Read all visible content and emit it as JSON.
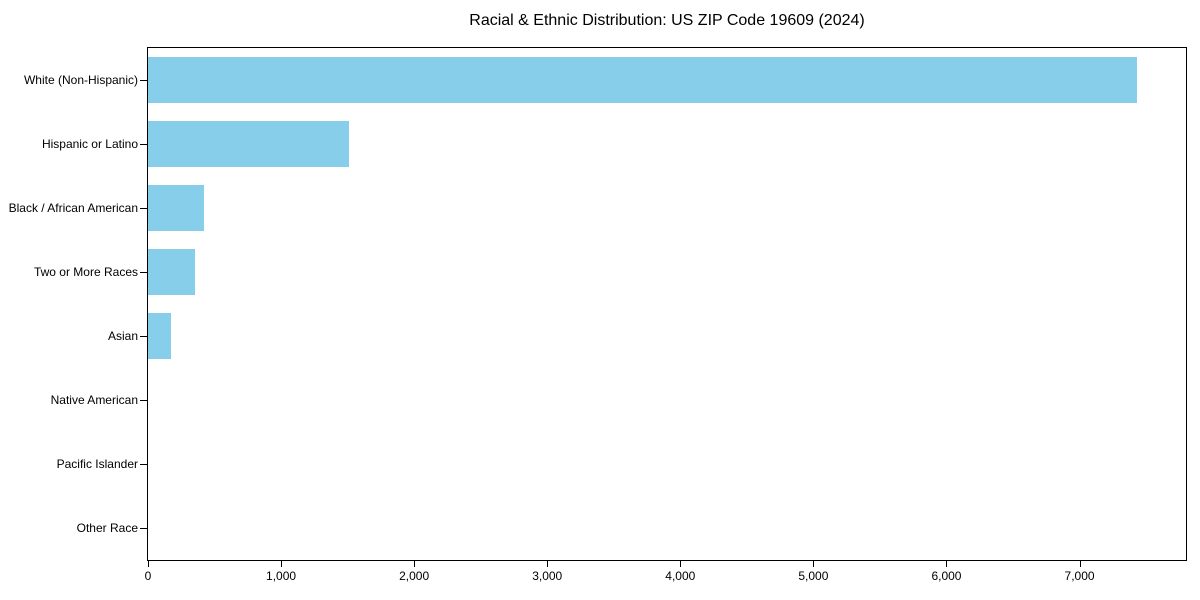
{
  "chart_data": {
    "type": "bar",
    "orientation": "horizontal",
    "title": "Racial & Ethnic Distribution: US ZIP Code 19609 (2024)",
    "categories": [
      "White (Non-Hispanic)",
      "Hispanic or Latino",
      "Black / African American",
      "Two or More Races",
      "Asian",
      "Native American",
      "Pacific Islander",
      "Other Race"
    ],
    "values": [
      7430,
      1510,
      420,
      350,
      170,
      0,
      0,
      0
    ],
    "xlabel": "",
    "ylabel": "",
    "xlim": [
      0,
      7800
    ],
    "xticks": [
      {
        "value": 0,
        "label": "0"
      },
      {
        "value": 1000,
        "label": "1,000"
      },
      {
        "value": 2000,
        "label": "2,000"
      },
      {
        "value": 3000,
        "label": "3,000"
      },
      {
        "value": 4000,
        "label": "4,000"
      },
      {
        "value": 5000,
        "label": "5,000"
      },
      {
        "value": 6000,
        "label": "6,000"
      },
      {
        "value": 7000,
        "label": "7,000"
      }
    ],
    "bar_color": "#87CEEB",
    "frame_color": "#000000",
    "grid": false,
    "legend": "none"
  }
}
